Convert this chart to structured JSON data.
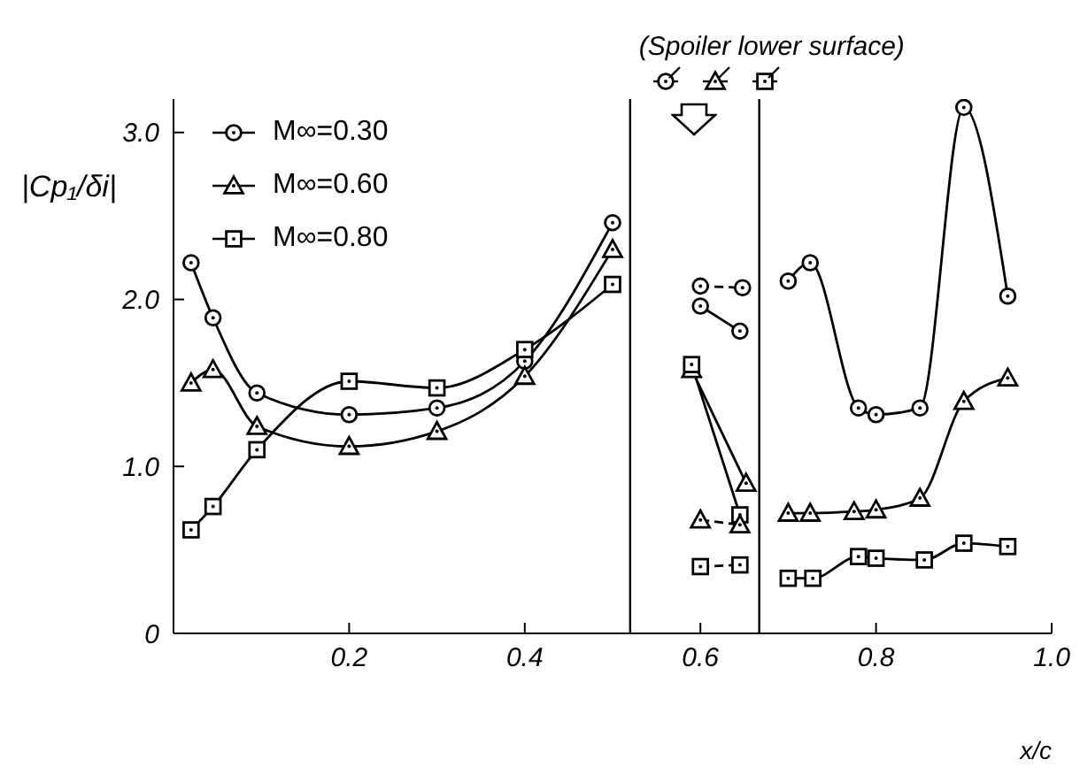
{
  "chart_data": {
    "type": "line",
    "xlabel": "x/c",
    "ylabel": "|Cp₁/δi|",
    "xlim": [
      0,
      1.0
    ],
    "ylim": [
      0,
      3.2
    ],
    "xticks": [
      0.2,
      0.4,
      0.6,
      0.8,
      {
        "value": 1.0,
        "label": "1.0"
      }
    ],
    "yticks": [
      0,
      {
        "value": 1,
        "label": "1.0"
      },
      {
        "value": 2,
        "label": "2.0"
      },
      {
        "value": 3,
        "label": "3.0"
      }
    ],
    "grid": false,
    "legend": "top left",
    "line_style": "solid",
    "annotations": [
      "(Spoiler lower surface)"
    ],
    "ref_lines": [
      {
        "axis": "x",
        "value": 0.52,
        "color": "#000000"
      },
      {
        "axis": "x",
        "value": 0.667,
        "color": "#000000"
      }
    ],
    "series": [
      {
        "name": "M∞=0.30",
        "color": "#000000",
        "marker": "circle",
        "x": [
          0.02,
          0.045,
          0.095,
          0.2,
          0.3,
          0.4,
          0.5,
          0.55,
          0.6,
          0.645,
          0.67,
          0.7,
          0.725,
          0.78,
          0.8,
          0.85,
          0.9,
          0.95
        ],
        "values": [
          2.22,
          1.89,
          1.44,
          1.31,
          1.35,
          1.63,
          2.46,
          null,
          1.96,
          1.81,
          null,
          2.11,
          2.22,
          1.35,
          1.31,
          1.35,
          3.15,
          2.02
        ]
      },
      {
        "name": "M∞=0.60",
        "color": "#000000",
        "marker": "triangle",
        "x": [
          0.02,
          0.045,
          0.095,
          0.2,
          0.3,
          0.4,
          0.5,
          0.55,
          0.59,
          0.652,
          0.67,
          0.7,
          0.725,
          0.775,
          0.8,
          0.85,
          0.9,
          0.95
        ],
        "values": [
          1.5,
          1.58,
          1.24,
          1.12,
          1.21,
          1.54,
          2.3,
          null,
          1.58,
          0.9,
          null,
          0.72,
          0.72,
          0.73,
          0.74,
          0.81,
          1.39,
          1.53
        ]
      },
      {
        "name": "M∞=0.80",
        "color": "#000000",
        "marker": "square",
        "x": [
          0.02,
          0.045,
          0.095,
          0.2,
          0.3,
          0.4,
          0.5,
          0.55,
          0.59,
          0.645,
          0.67,
          0.7,
          0.728,
          0.78,
          0.8,
          0.855,
          0.9,
          0.95
        ],
        "values": [
          0.62,
          0.76,
          1.1,
          1.51,
          1.47,
          1.7,
          2.09,
          null,
          1.61,
          0.71,
          null,
          0.33,
          0.33,
          0.46,
          0.45,
          0.44,
          0.54,
          0.52
        ]
      },
      {
        "color": "#000000",
        "marker": "circle",
        "line_style": "dashed",
        "x": [
          0.6,
          0.648
        ],
        "values": [
          2.08,
          2.07
        ]
      },
      {
        "color": "#000000",
        "marker": "triangle",
        "line_style": "dashed",
        "x": [
          0.6,
          0.645
        ],
        "values": [
          0.68,
          0.65
        ]
      },
      {
        "color": "#000000",
        "marker": "square",
        "line_style": "dashed",
        "x": [
          0.6,
          0.645
        ],
        "values": [
          0.4,
          0.41
        ]
      }
    ]
  }
}
